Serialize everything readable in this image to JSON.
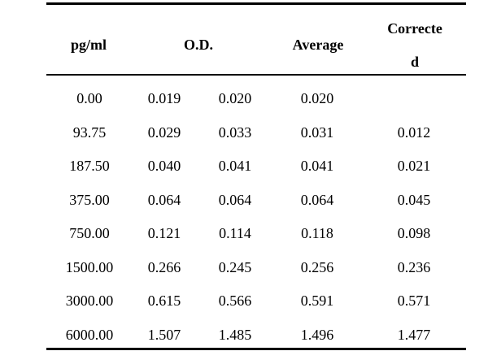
{
  "table": {
    "headers": {
      "pgml": "pg/ml",
      "od": "O.D.",
      "average": "Average",
      "corrected_line1": "Correcte",
      "corrected_line2": "d"
    },
    "rows": [
      {
        "pgml": "0.00",
        "od1": "0.019",
        "od2": "0.020",
        "average": "0.020",
        "corrected": ""
      },
      {
        "pgml": "93.75",
        "od1": "0.029",
        "od2": "0.033",
        "average": "0.031",
        "corrected": "0.012"
      },
      {
        "pgml": "187.50",
        "od1": "0.040",
        "od2": "0.041",
        "average": "0.041",
        "corrected": "0.021"
      },
      {
        "pgml": "375.00",
        "od1": "0.064",
        "od2": "0.064",
        "average": "0.064",
        "corrected": "0.045"
      },
      {
        "pgml": "750.00",
        "od1": "0.121",
        "od2": "0.114",
        "average": "0.118",
        "corrected": "0.098"
      },
      {
        "pgml": "1500.00",
        "od1": "0.266",
        "od2": "0.245",
        "average": "0.256",
        "corrected": "0.236"
      },
      {
        "pgml": "3000.00",
        "od1": "0.615",
        "od2": "0.566",
        "average": "0.591",
        "corrected": "0.571"
      },
      {
        "pgml": "6000.00",
        "od1": "1.507",
        "od2": "1.485",
        "average": "1.496",
        "corrected": "1.477"
      }
    ]
  }
}
